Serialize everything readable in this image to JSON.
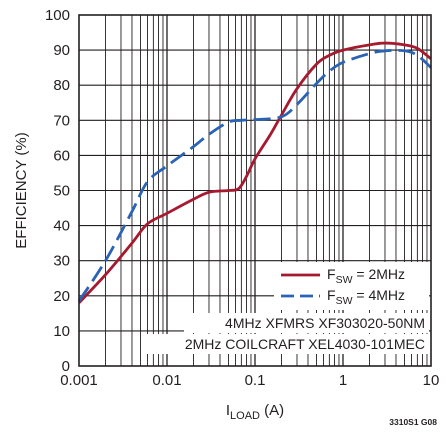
{
  "chart_data": {
    "type": "line",
    "xscale": "log",
    "xlim": [
      0.001,
      10
    ],
    "ylim": [
      0,
      100
    ],
    "x_ticks": [
      "0.001",
      "0.01",
      "0.1",
      "1",
      "10"
    ],
    "y_ticks": [
      "0",
      "10",
      "20",
      "30",
      "40",
      "50",
      "60",
      "70",
      "80",
      "90",
      "100"
    ],
    "xlabel_main": "I",
    "xlabel_sub": "LOAD",
    "xlabel_unit": " (A)",
    "ylabel": "EFFICIENCY (%)",
    "grid": true,
    "legend_position": "lower-right",
    "series": [
      {
        "name": "FSW = 2MHz",
        "name_main": "F",
        "name_sub": "SW",
        "name_rest": " = 2MHz",
        "color": "#a6192e",
        "dash": "solid",
        "x": [
          0.001,
          0.002,
          0.004,
          0.006,
          0.01,
          0.02,
          0.03,
          0.05,
          0.065,
          0.08,
          0.1,
          0.15,
          0.2,
          0.3,
          0.5,
          0.7,
          1,
          2,
          3,
          5,
          7,
          10
        ],
        "y": [
          18,
          26,
          35,
          40.5,
          43.5,
          47.5,
          49.5,
          50,
          50.5,
          54,
          59,
          66,
          71.5,
          79,
          86,
          88.5,
          90,
          91.5,
          92,
          91.5,
          90.5,
          87.5
        ]
      },
      {
        "name": "FSW = 4MHz",
        "name_main": "F",
        "name_sub": "SW",
        "name_rest": " = 4MHz",
        "color": "#2a63b5",
        "dash": "dashed",
        "x": [
          0.001,
          0.002,
          0.004,
          0.006,
          0.01,
          0.02,
          0.03,
          0.05,
          0.07,
          0.1,
          0.2,
          0.3,
          0.5,
          0.7,
          1,
          2,
          3,
          5,
          7,
          10
        ],
        "y": [
          18.5,
          30,
          44,
          52.5,
          57,
          62.5,
          66,
          69.5,
          70,
          70.2,
          71,
          74.5,
          80.5,
          84,
          86.5,
          89,
          89.8,
          89.8,
          88.5,
          85
        ]
      }
    ],
    "annotations": [
      "4MHz XFMRS XF303020-50NM",
      "2MHz COILCRAFT XEL4030-101MEC"
    ],
    "figure_code": "3310S1 G08"
  }
}
